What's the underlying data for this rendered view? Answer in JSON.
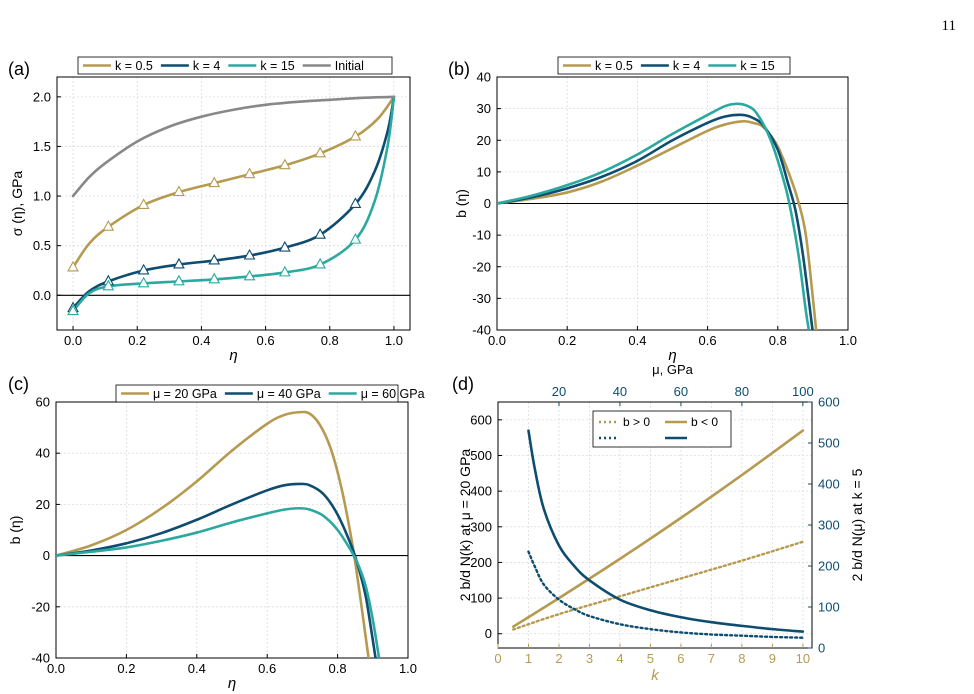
{
  "page_number": "11",
  "colors": {
    "gold": "#B59A4F",
    "navy": "#0E4D70",
    "teal": "#2BA9A0",
    "gray": "#888888"
  },
  "chart_data": [
    {
      "panel": "(a)",
      "type": "line",
      "xlabel": "η",
      "ylabel": "σ (η), GPa",
      "xlim": [
        -0.05,
        1.05
      ],
      "ylim": [
        -0.35,
        2.2
      ],
      "xticks": [
        0.0,
        0.2,
        0.4,
        0.6,
        0.8,
        1.0
      ],
      "yticks": [
        0.0,
        0.5,
        1.0,
        1.5,
        2.0
      ],
      "tick_format": 1,
      "grid": true,
      "legend": "top",
      "zero_line": true,
      "series": [
        {
          "name": "k = 0.5",
          "color": "#B59A4F",
          "marker": "triangle",
          "x": [
            0.0,
            0.05,
            0.11,
            0.22,
            0.33,
            0.44,
            0.55,
            0.66,
            0.77,
            0.88,
            0.95,
            1.0
          ],
          "y": [
            0.28,
            0.52,
            0.69,
            0.91,
            1.04,
            1.13,
            1.22,
            1.31,
            1.43,
            1.6,
            1.78,
            2.0
          ],
          "marker_x": [
            0.0,
            0.11,
            0.22,
            0.33,
            0.44,
            0.55,
            0.66,
            0.77,
            0.88
          ]
        },
        {
          "name": "k = 4",
          "color": "#0E4D70",
          "marker": "triangle",
          "x": [
            0.0,
            0.05,
            0.11,
            0.22,
            0.33,
            0.44,
            0.55,
            0.66,
            0.77,
            0.88,
            0.94,
            0.98,
            1.0
          ],
          "y": [
            -0.13,
            0.04,
            0.14,
            0.25,
            0.31,
            0.35,
            0.4,
            0.48,
            0.61,
            0.92,
            1.25,
            1.65,
            2.0
          ],
          "marker_x": [
            0.0,
            0.11,
            0.22,
            0.33,
            0.44,
            0.55,
            0.66,
            0.77,
            0.88
          ]
        },
        {
          "name": "k = 15",
          "color": "#2BA9A0",
          "marker": "triangle",
          "x": [
            0.0,
            0.05,
            0.11,
            0.22,
            0.33,
            0.44,
            0.55,
            0.66,
            0.77,
            0.88,
            0.94,
            0.98,
            1.0
          ],
          "y": [
            -0.16,
            0.02,
            0.09,
            0.12,
            0.14,
            0.16,
            0.19,
            0.23,
            0.31,
            0.56,
            0.95,
            1.5,
            2.0
          ],
          "marker_x": [
            0.0,
            0.11,
            0.22,
            0.33,
            0.44,
            0.55,
            0.66,
            0.77,
            0.88
          ]
        },
        {
          "name": "Initial",
          "color": "#888888",
          "marker": "none",
          "x": [
            0.0,
            0.05,
            0.1,
            0.2,
            0.3,
            0.4,
            0.5,
            0.6,
            0.7,
            0.8,
            0.9,
            1.0
          ],
          "y": [
            1.0,
            1.19,
            1.33,
            1.55,
            1.7,
            1.8,
            1.87,
            1.92,
            1.95,
            1.97,
            1.99,
            2.0
          ]
        }
      ]
    },
    {
      "panel": "(b)",
      "type": "line",
      "xlabel": "η",
      "ylabel": "b (η)",
      "xlim": [
        0.0,
        1.0
      ],
      "ylim": [
        -40,
        40
      ],
      "xticks": [
        0.0,
        0.2,
        0.4,
        0.6,
        0.8,
        1.0
      ],
      "yticks": [
        -40,
        -30,
        -20,
        -10,
        0,
        10,
        20,
        30,
        40
      ],
      "tick_format": 0,
      "xtick_format": 1,
      "grid": true,
      "legend": "top",
      "zero_line": true,
      "series": [
        {
          "name": "k = 0.5",
          "color": "#B59A4F",
          "x": [
            0.0,
            0.1,
            0.2,
            0.3,
            0.4,
            0.5,
            0.6,
            0.65,
            0.7,
            0.73,
            0.76,
            0.8,
            0.84,
            0.86,
            0.88,
            0.9,
            0.91
          ],
          "y": [
            0,
            1.5,
            3.5,
            7,
            12,
            17.5,
            23,
            25,
            26,
            25.5,
            24,
            18,
            7,
            0,
            -10,
            -30,
            -41
          ]
        },
        {
          "name": "k = 4",
          "color": "#0E4D70",
          "x": [
            0.0,
            0.1,
            0.2,
            0.3,
            0.4,
            0.5,
            0.6,
            0.65,
            0.7,
            0.73,
            0.76,
            0.8,
            0.83,
            0.85,
            0.87,
            0.89,
            0.9
          ],
          "y": [
            0,
            2,
            4.8,
            8.5,
            13.5,
            20,
            25.5,
            27.5,
            28,
            27,
            24.5,
            17,
            6,
            -2,
            -15,
            -32,
            -41
          ]
        },
        {
          "name": "k = 15",
          "color": "#2BA9A0",
          "x": [
            0.0,
            0.1,
            0.2,
            0.3,
            0.4,
            0.5,
            0.6,
            0.65,
            0.68,
            0.71,
            0.74,
            0.78,
            0.82,
            0.84,
            0.86,
            0.88,
            0.89
          ],
          "y": [
            0,
            2.5,
            5.8,
            10,
            15.5,
            22,
            28,
            30.8,
            31.5,
            31,
            28.5,
            20,
            6,
            -4,
            -17,
            -34,
            -41
          ]
        }
      ],
      "secondary_xlabel": "μ, GPa"
    },
    {
      "panel": "(c)",
      "type": "line",
      "xlabel": "η",
      "ylabel": "b (η)",
      "xlim": [
        0.0,
        1.0
      ],
      "ylim": [
        -40,
        60
      ],
      "xticks": [
        0.0,
        0.2,
        0.4,
        0.6,
        0.8,
        1.0
      ],
      "yticks": [
        -40,
        -20,
        0,
        20,
        40,
        60
      ],
      "tick_format": 0,
      "xtick_format": 1,
      "grid": true,
      "legend": "top",
      "zero_line": true,
      "series": [
        {
          "name": "μ = 20 GPa",
          "color": "#B59A4F",
          "x": [
            0.0,
            0.1,
            0.2,
            0.3,
            0.4,
            0.5,
            0.6,
            0.65,
            0.69,
            0.72,
            0.75,
            0.78,
            0.81,
            0.84,
            0.86,
            0.88,
            0.89
          ],
          "y": [
            0,
            4,
            10,
            18.5,
            29,
            41,
            51.5,
            55,
            56,
            55.5,
            51,
            42,
            27,
            6,
            -12,
            -32,
            -42
          ]
        },
        {
          "name": "μ = 40 GPa",
          "color": "#0E4D70",
          "x": [
            0.0,
            0.1,
            0.2,
            0.3,
            0.4,
            0.5,
            0.6,
            0.65,
            0.69,
            0.72,
            0.76,
            0.8,
            0.84,
            0.86,
            0.88,
            0.9,
            0.91
          ],
          "y": [
            0,
            2,
            4.8,
            8.8,
            14,
            20,
            25.5,
            27.5,
            28,
            27.5,
            24,
            16,
            3.5,
            -5,
            -16,
            -33,
            -42
          ]
        },
        {
          "name": "μ = 60 GPa",
          "color": "#2BA9A0",
          "x": [
            0.0,
            0.1,
            0.2,
            0.3,
            0.4,
            0.5,
            0.6,
            0.65,
            0.69,
            0.72,
            0.76,
            0.8,
            0.84,
            0.86,
            0.88,
            0.9,
            0.92
          ],
          "y": [
            0,
            1.5,
            3.2,
            5.8,
            9,
            13,
            16.5,
            18,
            18.5,
            18,
            15.5,
            10,
            1.5,
            -4,
            -12,
            -25,
            -42
          ]
        }
      ]
    },
    {
      "panel": "(d)",
      "type": "line",
      "xlabel": "k",
      "ylabel": "2 b/d N(k) at μ = 20 GPa",
      "ylabel_right": "2 b/d N(μ) at k = 5",
      "top_axis_label": "",
      "xlim": [
        0,
        10.3
      ],
      "ylim": [
        -40,
        650
      ],
      "xticks": [
        0,
        1,
        2,
        3,
        4,
        5,
        6,
        7,
        8,
        9,
        10
      ],
      "yticks": [
        0,
        100,
        200,
        300,
        400,
        500,
        600
      ],
      "top_xlim": [
        0,
        103
      ],
      "top_xticks": [
        20,
        40,
        60,
        80,
        100
      ],
      "right_ylim": [
        0,
        600
      ],
      "right_yticks": [
        0,
        100,
        200,
        300,
        400,
        500,
        600
      ],
      "tick_format": 0,
      "grid": true,
      "legend": "top-center",
      "series": [
        {
          "name": "b > 0",
          "color": "#B59A4F",
          "style": "dotted",
          "axis": "bottom-left",
          "x": [
            0.5,
            2,
            4,
            6,
            8,
            10
          ],
          "y": [
            12,
            55,
            105,
            155,
            205,
            258
          ]
        },
        {
          "name": "b < 0",
          "color": "#B59A4F",
          "style": "solid",
          "axis": "bottom-left",
          "x": [
            0.5,
            2,
            4,
            6,
            8,
            10
          ],
          "y": [
            20,
            100,
            210,
            325,
            445,
            570
          ]
        },
        {
          "name": "",
          "color": "#0E4D70",
          "style": "dotted",
          "axis": "top-right",
          "x": [
            10,
            12,
            15,
            20,
            25,
            30,
            40,
            50,
            60,
            70,
            80,
            90,
            100
          ],
          "y": [
            235,
            200,
            155,
            118,
            95,
            78,
            58,
            46,
            38,
            33,
            30,
            27,
            25
          ]
        },
        {
          "name": "",
          "color": "#0E4D70",
          "style": "solid",
          "axis": "top-right",
          "x": [
            10,
            12,
            15,
            20,
            25,
            30,
            40,
            50,
            60,
            70,
            80,
            90,
            100
          ],
          "y": [
            530,
            440,
            340,
            250,
            200,
            165,
            118,
            92,
            75,
            63,
            54,
            46,
            40
          ]
        }
      ]
    }
  ]
}
